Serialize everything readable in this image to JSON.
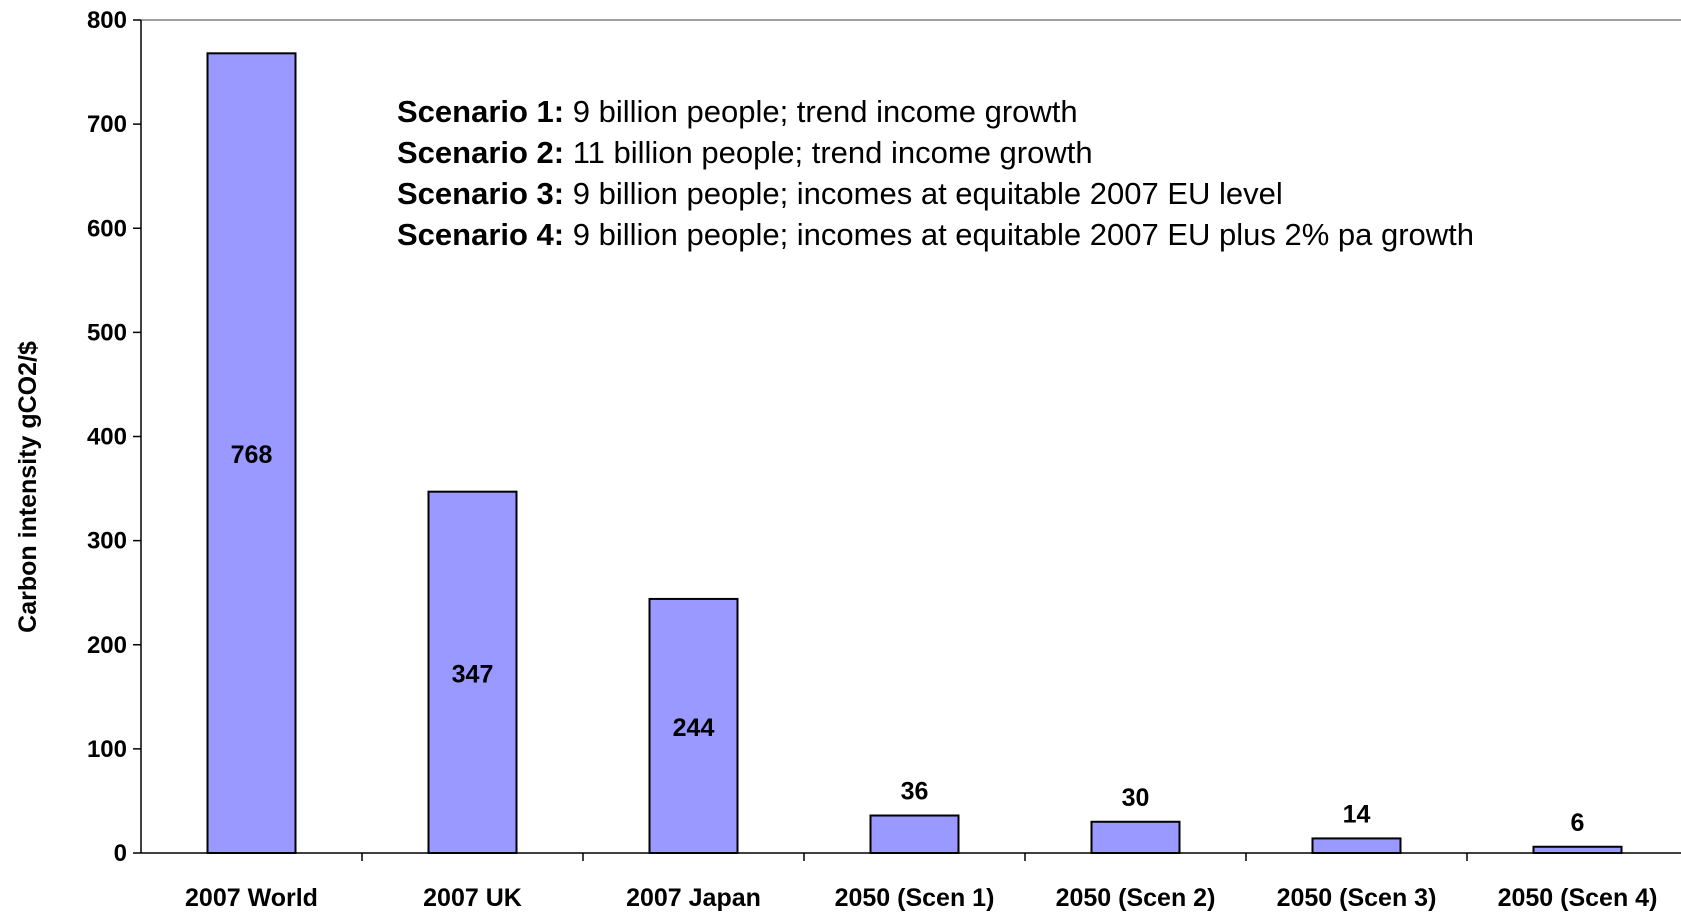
{
  "chart_data": {
    "type": "bar",
    "title": "",
    "xlabel": "",
    "ylabel": "Carbon intensity gCO2/$",
    "ylim": [
      0,
      800
    ],
    "yticks": [
      0,
      100,
      200,
      300,
      400,
      500,
      600,
      700,
      800
    ],
    "grid": false,
    "categories": [
      "2007 World",
      "2007 UK",
      "2007 Japan",
      "2050 (Scen 1)",
      "2050 (Scen 2)",
      "2050 (Scen 3)",
      "2050 (Scen 4)"
    ],
    "values": [
      768,
      347,
      244,
      36,
      30,
      14,
      6
    ],
    "data_labels": [
      "768",
      "347",
      "244",
      "36",
      "30",
      "14",
      "6"
    ],
    "bar_color": "#9999ff",
    "annotations": [
      {
        "label": "Scenario 1:",
        "text": " 9 billion people; trend income growth"
      },
      {
        "label": "Scenario 2:",
        "text": " 11 billion people; trend income growth"
      },
      {
        "label": "Scenario 3:",
        "text": " 9 billion people; incomes at equitable 2007 EU level"
      },
      {
        "label": "Scenario 4:",
        "text": " 9 billion people; incomes at equitable 2007 EU plus 2% pa growth"
      }
    ]
  }
}
